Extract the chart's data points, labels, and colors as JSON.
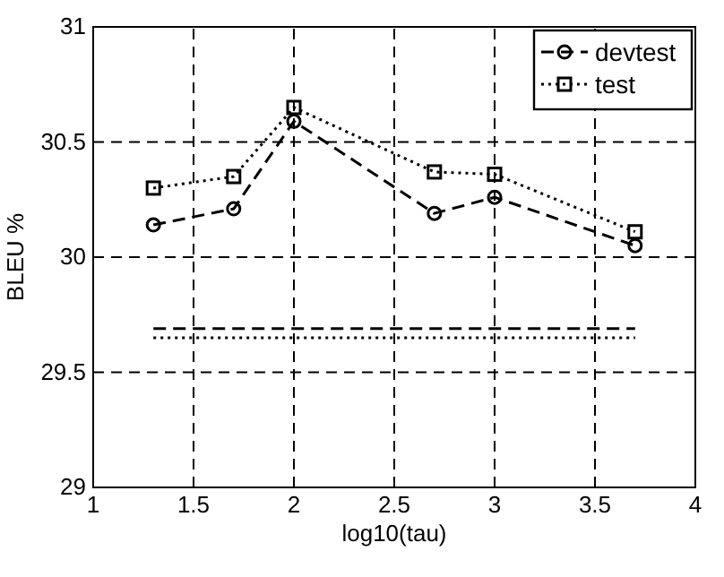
{
  "chart_data": {
    "type": "line",
    "xlabel": "log10(tau)",
    "ylabel": "BLEU %",
    "xlim": [
      1,
      4
    ],
    "ylim": [
      29,
      31
    ],
    "xticks": [
      1,
      1.5,
      2,
      2.5,
      3,
      3.5,
      4
    ],
    "yticks": [
      29,
      29.5,
      30,
      30.5,
      31
    ],
    "grid": true,
    "legend": "top right",
    "x": [
      1.3,
      1.7,
      2.0,
      2.7,
      3.0,
      3.7
    ],
    "series": [
      {
        "name": "devtest",
        "color": "#000000",
        "values": [
          30.14,
          30.21,
          30.59,
          30.19,
          30.26,
          30.05
        ],
        "marker": "circle",
        "line_style": "dashed"
      },
      {
        "name": "test",
        "color": "#000000",
        "values": [
          30.3,
          30.35,
          30.65,
          30.37,
          30.36,
          30.11
        ],
        "marker": "square",
        "line_style": "dotted"
      },
      {
        "color": "#000000",
        "values": [
          29.69,
          29.69,
          29.69,
          29.69,
          29.69,
          29.69
        ],
        "marker": "none",
        "line_style": "dashed"
      },
      {
        "color": "#000000",
        "values": [
          29.65,
          29.65,
          29.65,
          29.65,
          29.65,
          29.65
        ],
        "marker": "none",
        "line_style": "dotted"
      }
    ]
  }
}
